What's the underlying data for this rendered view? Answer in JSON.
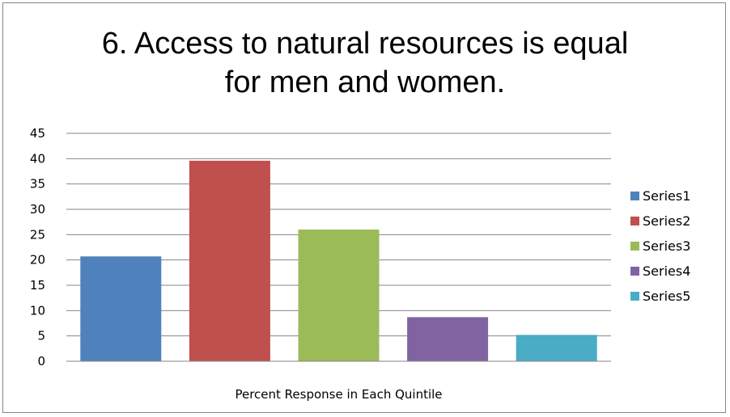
{
  "chart_data": {
    "type": "bar",
    "title": "6.  Access to natural resources is equal for men and women.",
    "title_lines": [
      "6.  Access to natural resources is equal",
      "for men and women."
    ],
    "xlabel": "Percent Response in Each Quintile",
    "ylabel": "",
    "ylim": [
      0,
      45
    ],
    "yticks": [
      0,
      5,
      10,
      15,
      20,
      25,
      30,
      35,
      40,
      45
    ],
    "grid": true,
    "legend_position": "right",
    "categories": [
      "Percent Response in Each Quintile"
    ],
    "series": [
      {
        "name": "Series1",
        "values": [
          20.7
        ],
        "color": "#4F81BD"
      },
      {
        "name": "Series2",
        "values": [
          39.6
        ],
        "color": "#C0504D"
      },
      {
        "name": "Series3",
        "values": [
          26.0
        ],
        "color": "#9BBB59"
      },
      {
        "name": "Series4",
        "values": [
          8.7
        ],
        "color": "#8064A2"
      },
      {
        "name": "Series5",
        "values": [
          5.2
        ],
        "color": "#4BACC6"
      }
    ]
  }
}
